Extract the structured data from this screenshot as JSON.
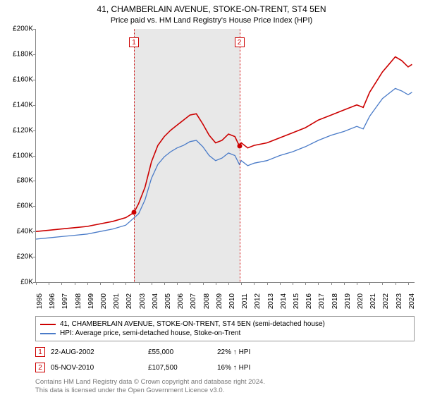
{
  "title": "41, CHAMBERLAIN AVENUE, STOKE-ON-TRENT, ST4 5EN",
  "subtitle": "Price paid vs. HM Land Registry's House Price Index (HPI)",
  "chart": {
    "type": "line",
    "background_color": "#ffffff",
    "axis_color": "#888888",
    "shade_color": "#e8e8e8",
    "y": {
      "min": 0,
      "max": 200000,
      "tick_step": 20000,
      "ticks": [
        "£0K",
        "£20K",
        "£40K",
        "£60K",
        "£80K",
        "£100K",
        "£120K",
        "£140K",
        "£160K",
        "£180K",
        "£200K"
      ],
      "tick_fontsize": 10
    },
    "x": {
      "min": 1995,
      "max": 2024.5,
      "ticks": [
        1995,
        1996,
        1997,
        1998,
        1999,
        2000,
        2001,
        2002,
        2003,
        2004,
        2005,
        2006,
        2007,
        2008,
        2009,
        2010,
        2011,
        2012,
        2013,
        2014,
        2015,
        2016,
        2017,
        2018,
        2019,
        2020,
        2021,
        2022,
        2023,
        2024
      ],
      "tick_fontsize": 10
    },
    "shade": {
      "from": 2002.64,
      "to": 2010.85
    },
    "series": [
      {
        "name": "price_paid",
        "label": "41, CHAMBERLAIN AVENUE, STOKE-ON-TRENT, ST4 5EN (semi-detached house)",
        "color": "#cc0000",
        "width": 1.6,
        "points": [
          [
            1995,
            40000
          ],
          [
            1996,
            41000
          ],
          [
            1997,
            42000
          ],
          [
            1998,
            43000
          ],
          [
            1999,
            44000
          ],
          [
            2000,
            46000
          ],
          [
            2001,
            48000
          ],
          [
            2002,
            51000
          ],
          [
            2002.64,
            55000
          ],
          [
            2003,
            62000
          ],
          [
            2003.5,
            75000
          ],
          [
            2004,
            95000
          ],
          [
            2004.5,
            108000
          ],
          [
            2005,
            115000
          ],
          [
            2005.5,
            120000
          ],
          [
            2006,
            124000
          ],
          [
            2006.5,
            128000
          ],
          [
            2007,
            132000
          ],
          [
            2007.5,
            133000
          ],
          [
            2008,
            125000
          ],
          [
            2008.5,
            116000
          ],
          [
            2009,
            110000
          ],
          [
            2009.5,
            112000
          ],
          [
            2010,
            117000
          ],
          [
            2010.5,
            115000
          ],
          [
            2010.85,
            107500
          ],
          [
            2011,
            110000
          ],
          [
            2011.5,
            106000
          ],
          [
            2012,
            108000
          ],
          [
            2013,
            110000
          ],
          [
            2014,
            114000
          ],
          [
            2015,
            118000
          ],
          [
            2016,
            122000
          ],
          [
            2017,
            128000
          ],
          [
            2018,
            132000
          ],
          [
            2019,
            136000
          ],
          [
            2020,
            140000
          ],
          [
            2020.5,
            138000
          ],
          [
            2021,
            150000
          ],
          [
            2021.5,
            158000
          ],
          [
            2022,
            166000
          ],
          [
            2022.5,
            172000
          ],
          [
            2023,
            178000
          ],
          [
            2023.5,
            175000
          ],
          [
            2024,
            170000
          ],
          [
            2024.3,
            172000
          ]
        ]
      },
      {
        "name": "hpi",
        "label": "HPI: Average price, semi-detached house, Stoke-on-Trent",
        "color": "#4a7bc8",
        "width": 1.3,
        "points": [
          [
            1995,
            34000
          ],
          [
            1996,
            35000
          ],
          [
            1997,
            36000
          ],
          [
            1998,
            37000
          ],
          [
            1999,
            38000
          ],
          [
            2000,
            40000
          ],
          [
            2001,
            42000
          ],
          [
            2002,
            45000
          ],
          [
            2003,
            54000
          ],
          [
            2003.5,
            65000
          ],
          [
            2004,
            82000
          ],
          [
            2004.5,
            93000
          ],
          [
            2005,
            99000
          ],
          [
            2005.5,
            103000
          ],
          [
            2006,
            106000
          ],
          [
            2006.5,
            108000
          ],
          [
            2007,
            111000
          ],
          [
            2007.5,
            112000
          ],
          [
            2008,
            107000
          ],
          [
            2008.5,
            100000
          ],
          [
            2009,
            96000
          ],
          [
            2009.5,
            98000
          ],
          [
            2010,
            102000
          ],
          [
            2010.5,
            100000
          ],
          [
            2010.85,
            93000
          ],
          [
            2011,
            96000
          ],
          [
            2011.5,
            92000
          ],
          [
            2012,
            94000
          ],
          [
            2013,
            96000
          ],
          [
            2014,
            100000
          ],
          [
            2015,
            103000
          ],
          [
            2016,
            107000
          ],
          [
            2017,
            112000
          ],
          [
            2018,
            116000
          ],
          [
            2019,
            119000
          ],
          [
            2020,
            123000
          ],
          [
            2020.5,
            121000
          ],
          [
            2021,
            131000
          ],
          [
            2021.5,
            138000
          ],
          [
            2022,
            145000
          ],
          [
            2022.5,
            149000
          ],
          [
            2023,
            153000
          ],
          [
            2023.5,
            151000
          ],
          [
            2024,
            148000
          ],
          [
            2024.3,
            150000
          ]
        ]
      }
    ],
    "markers": [
      {
        "num": "1",
        "x": 2002.64,
        "y": 55000,
        "color": "#cc0000"
      },
      {
        "num": "2",
        "x": 2010.85,
        "y": 107500,
        "color": "#cc0000"
      }
    ]
  },
  "sales": [
    {
      "num": "1",
      "date": "22-AUG-2002",
      "price": "£55,000",
      "delta": "22% ↑ HPI",
      "color": "#cc0000"
    },
    {
      "num": "2",
      "date": "05-NOV-2010",
      "price": "£107,500",
      "delta": "16% ↑ HPI",
      "color": "#cc0000"
    }
  ],
  "footnote1": "Contains HM Land Registry data © Crown copyright and database right 2024.",
  "footnote2": "This data is licensed under the Open Government Licence v3.0."
}
